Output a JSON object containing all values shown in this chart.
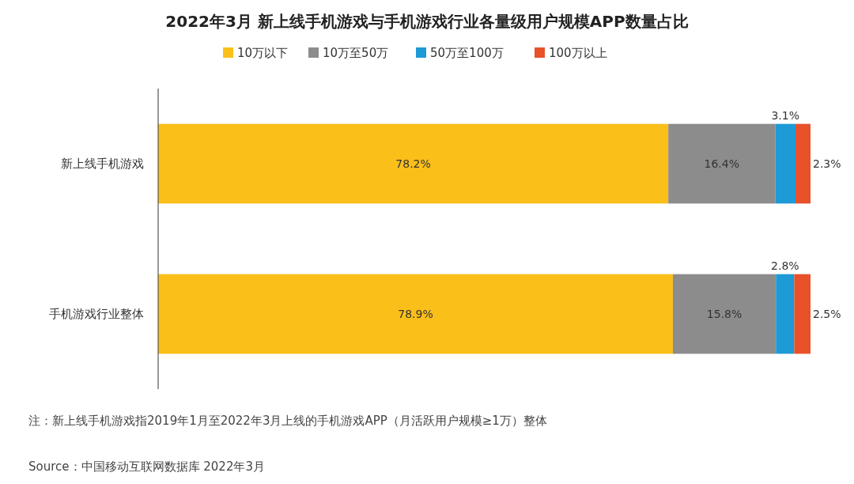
{
  "chart_data": {
    "type": "bar",
    "orientation": "horizontal",
    "stacked": true,
    "title": "2022年3月 新上线手机游戏与手机游戏行业各量级用户规模APP数量占比",
    "categories": [
      "新上线手机游戏",
      "手机游戏行业整体"
    ],
    "series": [
      {
        "name": "10万以下",
        "color": "#fbbf1a",
        "values": [
          78.2,
          78.9
        ],
        "value_labels": [
          "78.2%",
          "78.9%"
        ]
      },
      {
        "name": "10万至50万",
        "color": "#8c8c8c",
        "values": [
          16.4,
          15.8
        ],
        "value_labels": [
          "16.4%",
          "15.8%"
        ]
      },
      {
        "name": "50万至100万",
        "color": "#1e9ad6",
        "values": [
          3.1,
          2.8
        ],
        "value_labels": [
          "3.1%",
          "2.8%"
        ]
      },
      {
        "name": "100万以上",
        "color": "#e8512a",
        "values": [
          2.3,
          2.5
        ],
        "value_labels": [
          "2.3%",
          "2.5%"
        ]
      }
    ],
    "legend": "top",
    "annotations": [
      "注：新上线手机游戏指2019年1月至2022年3月上线的手机游戏APP（月活跃用户规模≥1万）整体",
      "Source：中国移动互联网数据库 2022年3月"
    ]
  }
}
